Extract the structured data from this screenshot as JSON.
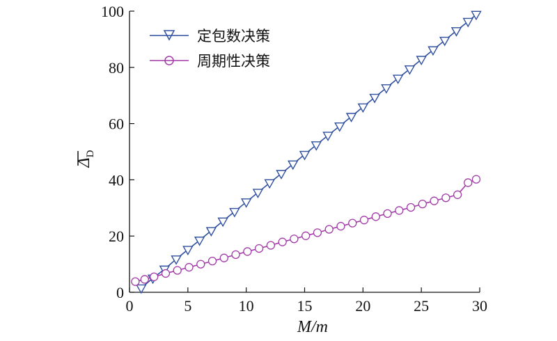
{
  "chart_data": {
    "type": "line",
    "xlabel": "M/m",
    "ylabel": "Δ̄D",
    "ylabel_main": "Δ",
    "ylabel_sub": "D",
    "xlim": [
      0,
      30
    ],
    "ylim": [
      0,
      100
    ],
    "xticks": [
      0,
      5,
      10,
      15,
      20,
      25,
      30
    ],
    "yticks": [
      0,
      20,
      40,
      60,
      80,
      100
    ],
    "grid": false,
    "legend_position": "top-left",
    "series": [
      {
        "name": "定包数决策",
        "color": "#2f4f9f",
        "marker": "triangle-down",
        "x": [
          1,
          2,
          3,
          4,
          5,
          6,
          7,
          8,
          9,
          10,
          11,
          12,
          13,
          14,
          15,
          16,
          17,
          18,
          19,
          20,
          21,
          22,
          23,
          24,
          25,
          26,
          27,
          28,
          29,
          29.7
        ],
        "y": [
          1.5,
          5,
          8.2,
          11.8,
          15.2,
          18.5,
          21.9,
          25.3,
          28.7,
          32.1,
          35.5,
          38.9,
          42.2,
          45.6,
          49,
          52.4,
          55.8,
          59.1,
          62.5,
          65.9,
          69.3,
          72.7,
          76.1,
          79.4,
          82.8,
          86.2,
          89.6,
          93,
          96.3,
          98.8
        ]
      },
      {
        "name": "周期性决策",
        "color": "#a23aa8",
        "marker": "circle",
        "x": [
          0.5,
          1.3,
          2.1,
          3.1,
          4.1,
          5.1,
          6.1,
          7.1,
          8.1,
          9.1,
          10.1,
          11.1,
          12.1,
          13.1,
          14.1,
          15.1,
          16.1,
          17.1,
          18.1,
          19.1,
          20.1,
          21.1,
          22.1,
          23.1,
          24.1,
          25.1,
          26.1,
          27.1,
          28.1,
          29,
          29.7
        ],
        "y": [
          3.8,
          4.6,
          5.5,
          6.7,
          7.8,
          8.9,
          10,
          11.1,
          12.2,
          13.4,
          14.5,
          15.6,
          16.7,
          17.9,
          19,
          20.1,
          21.2,
          22.4,
          23.5,
          24.6,
          25.7,
          26.9,
          28,
          29.1,
          30.2,
          31.4,
          32.5,
          33.6,
          34.7,
          39,
          40.2
        ]
      }
    ]
  }
}
